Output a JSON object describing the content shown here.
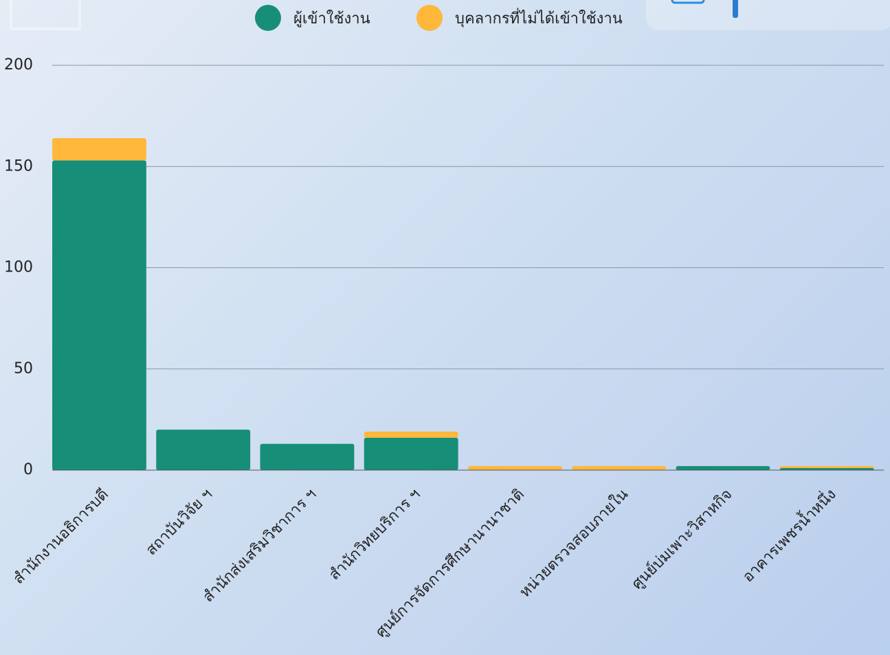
{
  "chart_data": {
    "type": "stacked_bar",
    "categories": [
      "สำนักงานอธิการบดี",
      "สถาบันวิจัย ฯ",
      "สำนักส่งเสริมวิชาการ ฯ",
      "สำนักวิทยบริการ ฯ",
      "ศูนย์การจัดการศึกษานานาชาติ",
      "หน่วยตรวจสอบภายใน",
      "ศูนย์บ่มเพาะวิสาหกิจ",
      "อาคารเพชรน้ำหนึ่ง"
    ],
    "series": [
      {
        "name": "ผู้เข้าใช้งาน",
        "color": "#178f78",
        "values": [
          153,
          20,
          13,
          16,
          0,
          0,
          2,
          1
        ]
      },
      {
        "name": "บุคลากรที่ไม่ได้เข้าใช้งาน",
        "color": "#ffb73c",
        "values": [
          11,
          0,
          0,
          3,
          2,
          2,
          0,
          1
        ]
      }
    ],
    "ylim": [
      0,
      200
    ],
    "yticks": [
      0,
      50,
      100,
      150,
      200
    ],
    "grid": true
  }
}
